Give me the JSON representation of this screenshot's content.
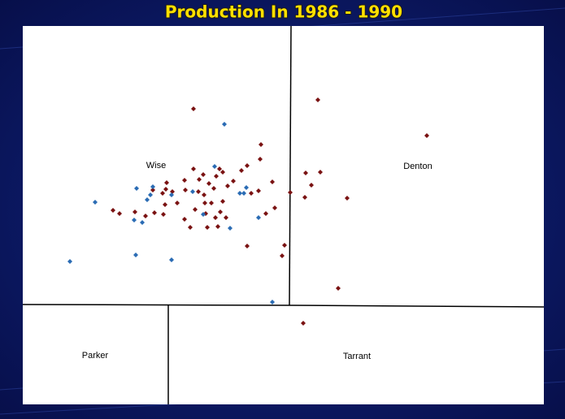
{
  "title": "Production In 1986 - 1990",
  "regions": [
    {
      "label": "Wise"
    },
    {
      "label": "Denton"
    },
    {
      "label": "Parker"
    },
    {
      "label": "Tarrant"
    }
  ]
}
